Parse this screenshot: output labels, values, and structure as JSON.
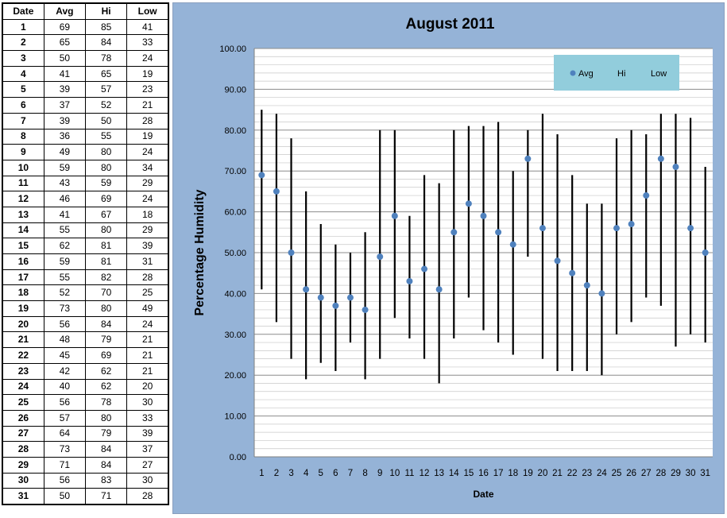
{
  "table": {
    "headers": [
      "Date",
      "Avg",
      "Hi",
      "Low"
    ],
    "rows": [
      [
        "1",
        "69",
        "85",
        "41"
      ],
      [
        "2",
        "65",
        "84",
        "33"
      ],
      [
        "3",
        "50",
        "78",
        "24"
      ],
      [
        "4",
        "41",
        "65",
        "19"
      ],
      [
        "5",
        "39",
        "57",
        "23"
      ],
      [
        "6",
        "37",
        "52",
        "21"
      ],
      [
        "7",
        "39",
        "50",
        "28"
      ],
      [
        "8",
        "36",
        "55",
        "19"
      ],
      [
        "9",
        "49",
        "80",
        "24"
      ],
      [
        "10",
        "59",
        "80",
        "34"
      ],
      [
        "11",
        "43",
        "59",
        "29"
      ],
      [
        "12",
        "46",
        "69",
        "24"
      ],
      [
        "13",
        "41",
        "67",
        "18"
      ],
      [
        "14",
        "55",
        "80",
        "29"
      ],
      [
        "15",
        "62",
        "81",
        "39"
      ],
      [
        "16",
        "59",
        "81",
        "31"
      ],
      [
        "17",
        "55",
        "82",
        "28"
      ],
      [
        "18",
        "52",
        "70",
        "25"
      ],
      [
        "19",
        "73",
        "80",
        "49"
      ],
      [
        "20",
        "56",
        "84",
        "24"
      ],
      [
        "21",
        "48",
        "79",
        "21"
      ],
      [
        "22",
        "45",
        "69",
        "21"
      ],
      [
        "23",
        "42",
        "62",
        "21"
      ],
      [
        "24",
        "40",
        "62",
        "20"
      ],
      [
        "25",
        "56",
        "78",
        "30"
      ],
      [
        "26",
        "57",
        "80",
        "33"
      ],
      [
        "27",
        "64",
        "79",
        "39"
      ],
      [
        "28",
        "73",
        "84",
        "37"
      ],
      [
        "29",
        "71",
        "84",
        "27"
      ],
      [
        "30",
        "56",
        "83",
        "30"
      ],
      [
        "31",
        "50",
        "71",
        "28"
      ]
    ]
  },
  "chart_data": {
    "type": "scatter",
    "title": "August 2011",
    "xlabel": "Date",
    "ylabel": "Percentage Humidity",
    "x": [
      1,
      2,
      3,
      4,
      5,
      6,
      7,
      8,
      9,
      10,
      11,
      12,
      13,
      14,
      15,
      16,
      17,
      18,
      19,
      20,
      21,
      22,
      23,
      24,
      25,
      26,
      27,
      28,
      29,
      30,
      31
    ],
    "series": [
      {
        "name": "Avg",
        "values": [
          69,
          65,
          50,
          41,
          39,
          37,
          39,
          36,
          49,
          59,
          43,
          46,
          41,
          55,
          62,
          59,
          55,
          52,
          73,
          56,
          48,
          45,
          42,
          40,
          56,
          57,
          64,
          73,
          71,
          56,
          50
        ]
      },
      {
        "name": "Hi",
        "values": [
          85,
          84,
          78,
          65,
          57,
          52,
          50,
          55,
          80,
          80,
          59,
          69,
          67,
          80,
          81,
          81,
          82,
          70,
          80,
          84,
          79,
          69,
          62,
          62,
          78,
          80,
          79,
          84,
          84,
          83,
          71
        ]
      },
      {
        "name": "Low",
        "values": [
          41,
          33,
          24,
          19,
          23,
          21,
          28,
          19,
          24,
          34,
          29,
          24,
          18,
          29,
          39,
          31,
          28,
          25,
          49,
          24,
          21,
          21,
          21,
          20,
          30,
          33,
          39,
          37,
          27,
          30,
          28
        ]
      }
    ],
    "ylim": [
      0,
      100
    ],
    "yticks": [
      "0.00",
      "10.00",
      "20.00",
      "30.00",
      "40.00",
      "50.00",
      "60.00",
      "70.00",
      "80.00",
      "90.00",
      "100.00"
    ],
    "grid": true,
    "legend": "top-right",
    "colors": {
      "avg": "#4f81bd",
      "bar": "#000000",
      "panel": "#95b3d7",
      "plot": "#ffffff",
      "legend_bg": "#92cddc"
    }
  }
}
